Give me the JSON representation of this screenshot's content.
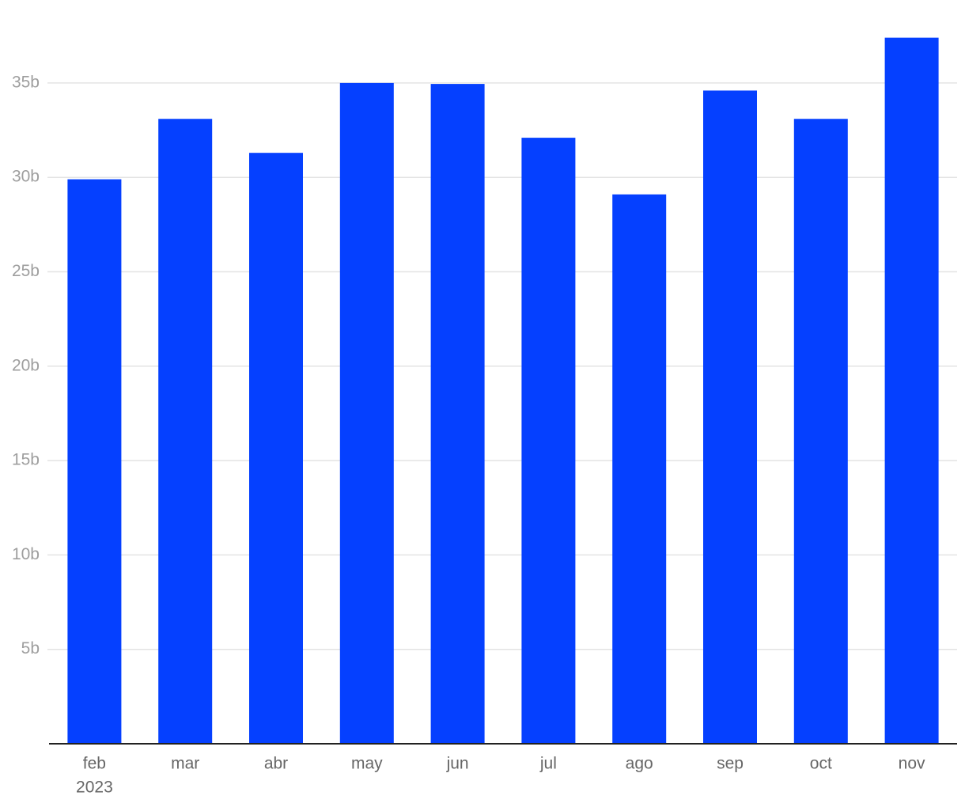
{
  "chart_data": {
    "type": "bar",
    "categories": [
      "feb",
      "mar",
      "abr",
      "may",
      "jun",
      "jul",
      "ago",
      "sep",
      "oct",
      "nov"
    ],
    "year_label": "2023",
    "values": [
      29.9,
      33.1,
      31.3,
      35.0,
      34.95,
      32.1,
      29.1,
      34.6,
      33.1,
      37.4
    ],
    "color": "#0540ff",
    "ylim": [
      0,
      38
    ],
    "yticks": [
      {
        "value": 5,
        "label": "5b"
      },
      {
        "value": 10,
        "label": "10b"
      },
      {
        "value": 15,
        "label": "15b"
      },
      {
        "value": 20,
        "label": "20b"
      },
      {
        "value": 25,
        "label": "25b"
      },
      {
        "value": 30,
        "label": "30b"
      },
      {
        "value": 35,
        "label": "35b"
      }
    ],
    "grid": true
  }
}
